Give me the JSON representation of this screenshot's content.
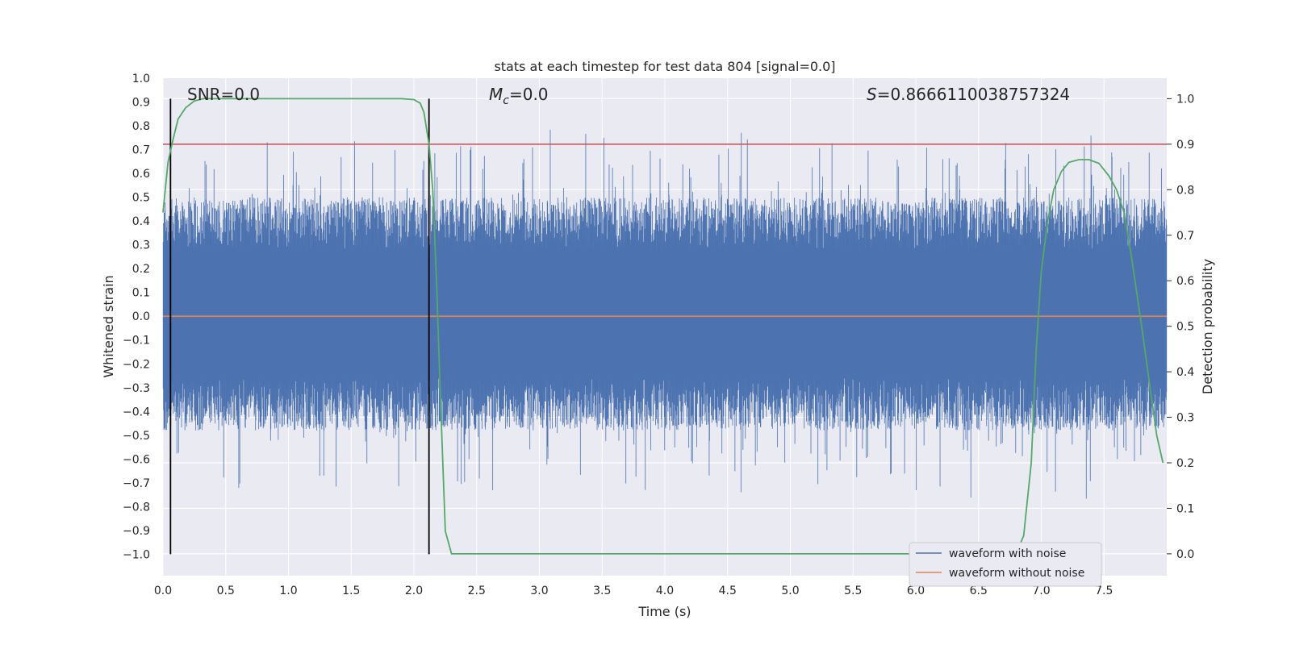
{
  "chart_data": {
    "type": "line",
    "title": "stats at each timestep for test data 804 [signal=0.0]",
    "xlabel": "Time (s)",
    "ylabel": "Whitened strain",
    "y2label": "Detection probability",
    "xlim": [
      0.0,
      8.0
    ],
    "ylim": [
      -1.09,
      1.0
    ],
    "y2lim": [
      -0.048,
      1.045
    ],
    "xticks": [
      "0.0",
      "0.5",
      "1.0",
      "1.5",
      "2.0",
      "2.5",
      "3.0",
      "3.5",
      "4.0",
      "4.5",
      "5.0",
      "5.5",
      "6.0",
      "6.5",
      "7.0",
      "7.5"
    ],
    "xtick_values": [
      0.0,
      0.5,
      1.0,
      1.5,
      2.0,
      2.5,
      3.0,
      3.5,
      4.0,
      4.5,
      5.0,
      5.5,
      6.0,
      6.5,
      7.0,
      7.5
    ],
    "yticks": [
      "1.0",
      "0.9",
      "0.8",
      "0.7",
      "0.6",
      "0.5",
      "0.4",
      "0.3",
      "0.2",
      "0.1",
      "0.0",
      "−0.1",
      "−0.2",
      "−0.3",
      "−0.4",
      "−0.5",
      "−0.6",
      "−0.7",
      "−0.8",
      "−0.9",
      "−1.0"
    ],
    "ytick_values": [
      1.0,
      0.9,
      0.8,
      0.7,
      0.6,
      0.5,
      0.4,
      0.3,
      0.2,
      0.1,
      0.0,
      -0.1,
      -0.2,
      -0.3,
      -0.4,
      -0.5,
      -0.6,
      -0.7,
      -0.8,
      -0.9,
      -1.0
    ],
    "y2ticks": [
      "1.0",
      "0.9",
      "0.8",
      "0.7",
      "0.6",
      "0.5",
      "0.4",
      "0.3",
      "0.2",
      "0.1",
      "0.0"
    ],
    "y2tick_values": [
      1.0,
      0.9,
      0.8,
      0.7,
      0.6,
      0.5,
      0.4,
      0.3,
      0.2,
      0.1,
      0.0
    ],
    "annotations": {
      "snr": "SNR=0.0",
      "mc": "=0.0",
      "mc_symbol": "M",
      "mc_sub": "c",
      "s": "=0.8666110038757324",
      "s_symbol": "S"
    },
    "threshold": 0.9,
    "vlines": [
      0.06,
      2.12
    ],
    "series": [
      {
        "name": "waveform with noise",
        "color": "#4c72b0",
        "description": "whitened noisy strain, roughly within ±0.45 with spikes up to about ±0.87"
      },
      {
        "name": "waveform without noise",
        "color": "#dd8452",
        "x": [
          0.0,
          8.0
        ],
        "y": [
          0.0,
          0.0
        ]
      },
      {
        "name": "detection probability",
        "color": "#55a868",
        "x": [
          0.0,
          0.04,
          0.08,
          0.12,
          0.18,
          0.25,
          0.32,
          0.4,
          0.6,
          1.0,
          1.5,
          1.9,
          2.0,
          2.05,
          2.08,
          2.12,
          2.15,
          2.18,
          2.21,
          2.25,
          2.3,
          2.4,
          3.0,
          4.0,
          5.0,
          6.0,
          6.5,
          6.8,
          6.86,
          6.92,
          6.96,
          7.0,
          7.05,
          7.1,
          7.16,
          7.22,
          7.3,
          7.38,
          7.46,
          7.54,
          7.6,
          7.66,
          7.72,
          7.8,
          7.86,
          7.92,
          7.97
        ],
        "y": [
          0.75,
          0.86,
          0.91,
          0.955,
          0.98,
          0.995,
          1.0,
          1.0,
          1.0,
          1.0,
          1.0,
          1.0,
          0.998,
          0.99,
          0.97,
          0.9,
          0.8,
          0.6,
          0.35,
          0.05,
          0.0,
          0.0,
          0.0,
          0.0,
          0.0,
          0.0,
          0.0,
          0.0,
          0.04,
          0.2,
          0.45,
          0.62,
          0.73,
          0.8,
          0.84,
          0.86,
          0.866,
          0.866,
          0.858,
          0.83,
          0.8,
          0.75,
          0.65,
          0.5,
          0.38,
          0.26,
          0.2
        ]
      }
    ],
    "legend": {
      "placement": "lower-right",
      "entries": [
        {
          "label": "waveform with noise",
          "color": "#4c72b0"
        },
        {
          "label": "waveform without noise",
          "color": "#dd8452"
        }
      ]
    },
    "colors": {
      "background": "#eaeaf2",
      "grid": "#ffffff",
      "threshold": "#c44e52",
      "vline": "#000000",
      "text": "#262626"
    }
  }
}
